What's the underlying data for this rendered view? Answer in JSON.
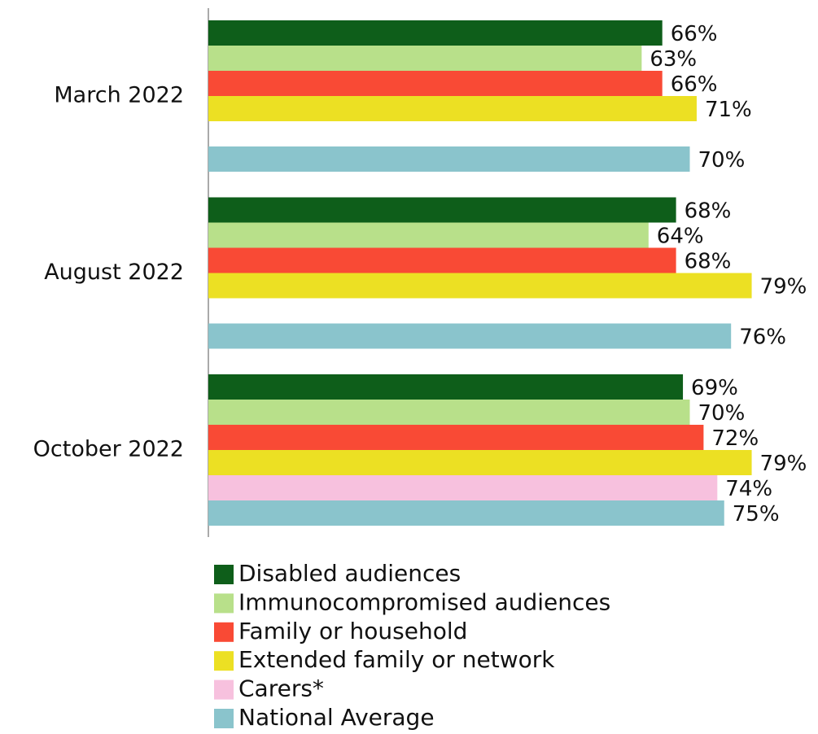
{
  "chart_data": {
    "type": "bar",
    "orientation": "horizontal",
    "categories": [
      "March 2022",
      "August 2022",
      "October 2022"
    ],
    "xlim": [
      0,
      100
    ],
    "series": [
      {
        "name": "Disabled audiences",
        "color": "#0e5e1a",
        "values": [
          66,
          68,
          69
        ],
        "value_labels": [
          "66%",
          "68%",
          "69%"
        ]
      },
      {
        "name": "Immunocompromised audiences",
        "color": "#b8e08a",
        "values": [
          63,
          64,
          70
        ],
        "value_labels": [
          "63%",
          "64%",
          "70%"
        ]
      },
      {
        "name": "Family or household",
        "color": "#f94a35",
        "values": [
          66,
          68,
          72
        ],
        "value_labels": [
          "66%",
          "68%",
          "72%"
        ]
      },
      {
        "name": "Extended family or network",
        "color": "#ece023",
        "values": [
          71,
          79,
          79
        ],
        "value_labels": [
          "71%",
          "79%",
          "79%"
        ]
      },
      {
        "name": "Carers*",
        "color": "#f7c1de",
        "values": [
          null,
          null,
          74
        ],
        "value_labels": [
          null,
          null,
          "74%"
        ]
      },
      {
        "name": "National Average",
        "color": "#8ac4cc",
        "values": [
          70,
          76,
          75
        ],
        "value_labels": [
          "70%",
          "76%",
          "75%"
        ]
      }
    ],
    "legend": "bottom"
  }
}
